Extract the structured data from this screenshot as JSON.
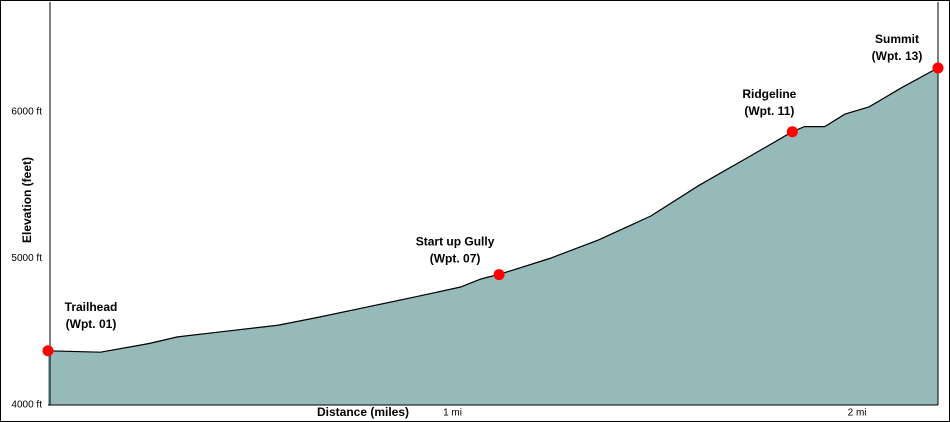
{
  "chart_data": {
    "type": "area",
    "x_label": "Distance (miles)",
    "y_label": "Elevation (feet)",
    "fill_color": "#96b9b9",
    "line_color": "#000000",
    "marker_color": "#ff0000",
    "xlim": [
      0,
      2.2
    ],
    "ylim": [
      4000,
      6750
    ],
    "xticks": [
      {
        "value": 1,
        "label": "1 mi"
      },
      {
        "value": 2,
        "label": "2 mi"
      }
    ],
    "yticks": [
      {
        "value": 4000,
        "label": "4000 ft"
      },
      {
        "value": 5000,
        "label": "5000 ft"
      },
      {
        "value": 6000,
        "label": "6000 ft"
      }
    ],
    "x": [
      0,
      0.13,
      0.25,
      0.32,
      0.43,
      0.57,
      0.67,
      0.8,
      0.92,
      1.02,
      1.07,
      1.12,
      1.24,
      1.36,
      1.49,
      1.61,
      1.74,
      1.84,
      1.87,
      1.92,
      1.97,
      2.03,
      2.11,
      2.2
    ],
    "values": [
      4370,
      4360,
      4420,
      4465,
      4500,
      4545,
      4600,
      4675,
      4745,
      4805,
      4860,
      4895,
      5000,
      5125,
      5290,
      5500,
      5705,
      5865,
      5900,
      5900,
      5985,
      6035,
      6165,
      6300
    ],
    "waypoints": [
      {
        "name": "Trailhead",
        "label": "(Wpt. 01)",
        "x": 0,
        "y": 4370
      },
      {
        "name": "Start up Gully",
        "label": "(Wpt. 07)",
        "x": 1.115,
        "y": 4890
      },
      {
        "name": "Ridgeline",
        "label": "(Wpt. 11)",
        "x": 1.84,
        "y": 5865
      },
      {
        "name": "Summit",
        "label": "(Wpt. 13)",
        "x": 2.2,
        "y": 6300
      }
    ]
  }
}
